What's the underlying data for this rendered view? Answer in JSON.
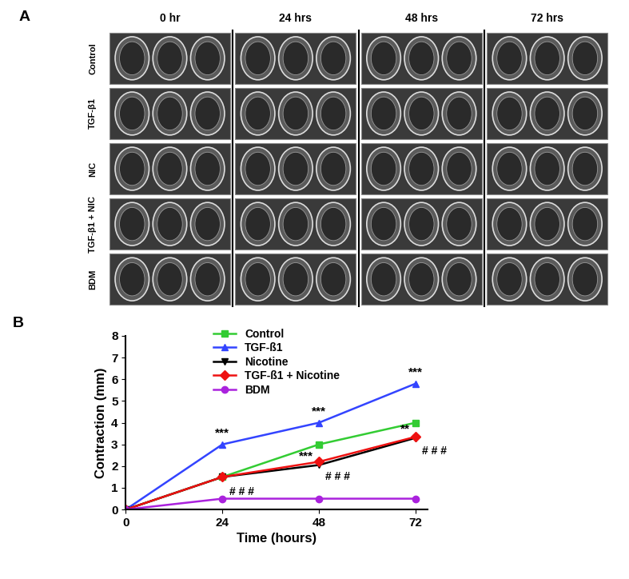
{
  "panel_a": {
    "label": "A",
    "columns": [
      "0 hr",
      "24 hrs",
      "48 hrs",
      "72 hrs"
    ],
    "rows": [
      "Control",
      "TGF-β1",
      "NIC",
      "TGF-β1 + NIC",
      "BDM"
    ]
  },
  "chart_data": {
    "type": "line",
    "panel_label": "B",
    "x_label": "Time (hours)",
    "y_label": "Contraction (mm)",
    "x": [
      0,
      24,
      48,
      72
    ],
    "xlim": [
      0,
      75
    ],
    "xticks": [
      0,
      24,
      48,
      72
    ],
    "ylim": [
      0,
      8
    ],
    "yticks": [
      0,
      1,
      2,
      3,
      4,
      5,
      6,
      7,
      8
    ],
    "legend": "upper center",
    "series": [
      {
        "name": "Control",
        "color": "#33cc33",
        "marker": "square",
        "values": [
          0,
          1.5,
          3.0,
          4.0
        ]
      },
      {
        "name": "TGF-ß1",
        "color": "#3344ff",
        "marker": "triangle_up",
        "values": [
          0,
          3.0,
          4.0,
          5.8
        ],
        "significance": [
          null,
          "***",
          "***",
          "***"
        ]
      },
      {
        "name": "Nicotine",
        "color": "#000000",
        "marker": "triangle_down",
        "values": [
          0,
          1.5,
          2.05,
          3.3
        ],
        "significance": [
          null,
          null,
          "***",
          "**"
        ]
      },
      {
        "name": "TGF-ß1 + Nicotine",
        "color": "#ee1111",
        "marker": "diamond",
        "values": [
          0,
          1.5,
          2.2,
          3.35
        ],
        "significance": [
          null,
          "# # #",
          "# # #",
          "# # #"
        ]
      },
      {
        "name": "BDM",
        "color": "#aa22dd",
        "marker": "circle",
        "values": [
          0,
          0.5,
          0.5,
          0.5
        ]
      }
    ]
  }
}
